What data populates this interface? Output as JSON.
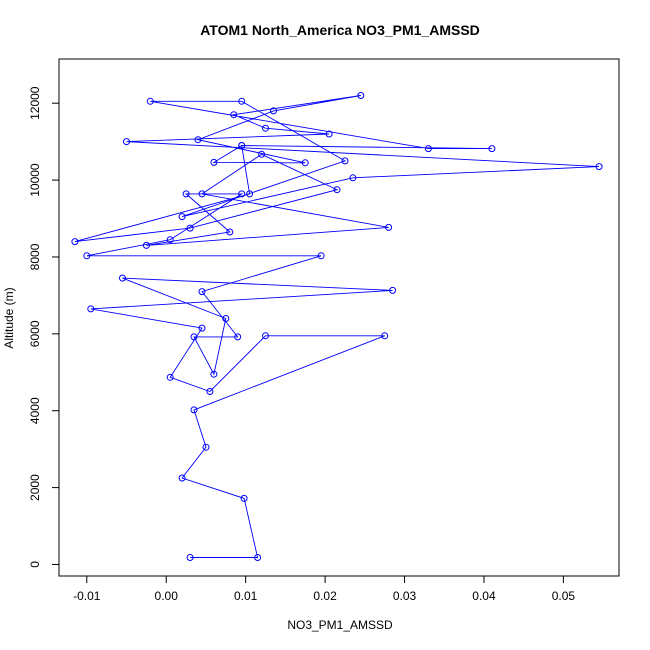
{
  "chart_data": {
    "type": "line",
    "title": "ATOM1 North_America NO3_PM1_AMSSD",
    "xlabel": "NO3_PM1_AMSSD",
    "ylabel": "Altitude (m)",
    "xlim": [
      -0.0135,
      0.057
    ],
    "ylim": [
      -300,
      13150
    ],
    "xticks": [
      -0.01,
      0,
      0.01,
      0.02,
      0.03,
      0.04,
      0.05
    ],
    "xtick_labels": [
      "-0.01",
      "0.00",
      "0.01",
      "0.02",
      "0.03",
      "0.04",
      "0.05"
    ],
    "yticks": [
      0,
      2000,
      4000,
      6000,
      8000,
      10000,
      12000
    ],
    "ytick_labels": [
      "0",
      "2000",
      "4000",
      "6000",
      "8000",
      "10000",
      "12000"
    ],
    "series_color": "#0000ff",
    "series": [
      {
        "points": [
          [
            0.003,
            180
          ],
          [
            0.0115,
            180
          ],
          [
            0.0098,
            1720
          ],
          [
            0.002,
            2250
          ],
          [
            0.005,
            3050
          ],
          [
            0.0035,
            4020
          ],
          [
            0.0275,
            5950
          ],
          [
            0.0125,
            5950
          ],
          [
            0.0055,
            4500
          ],
          [
            0.0005,
            4870
          ],
          [
            0.0045,
            6150
          ],
          [
            -0.0095,
            6650
          ],
          [
            0.0285,
            7130
          ],
          [
            -0.0055,
            7450
          ],
          [
            0.0075,
            6400
          ],
          [
            0.006,
            4950
          ],
          [
            0.0035,
            5920
          ],
          [
            0.009,
            5920
          ],
          [
            0.0045,
            7100
          ],
          [
            0.0195,
            8030
          ],
          [
            -0.01,
            8030
          ],
          [
            0.0005,
            8450
          ],
          [
            0.0095,
            9640
          ],
          [
            0.0025,
            9640
          ],
          [
            0.008,
            8650
          ],
          [
            -0.0025,
            8300
          ],
          [
            0.028,
            8770
          ],
          [
            0.0045,
            9640
          ],
          [
            0.012,
            10670
          ],
          [
            0.0215,
            9750
          ],
          [
            0.003,
            8750
          ],
          [
            -0.0115,
            8400
          ],
          [
            0.0105,
            9640
          ],
          [
            0.0095,
            10900
          ],
          [
            0.006,
            10460
          ],
          [
            0.0175,
            10450
          ],
          [
            0.004,
            11050
          ],
          [
            0.0135,
            11800
          ],
          [
            0.0245,
            12200
          ],
          [
            0.0085,
            11700
          ],
          [
            0.0125,
            11350
          ],
          [
            0.0205,
            11200
          ],
          [
            -0.005,
            11000
          ],
          [
            0.0545,
            10350
          ],
          [
            0.0235,
            10060
          ],
          [
            0.002,
            9050
          ],
          [
            0.0225,
            10500
          ],
          [
            0.0095,
            12050
          ],
          [
            -0.002,
            12050
          ],
          [
            0.033,
            10820
          ],
          [
            0.041,
            10820
          ],
          [
            0.0095,
            10900
          ]
        ]
      }
    ]
  }
}
